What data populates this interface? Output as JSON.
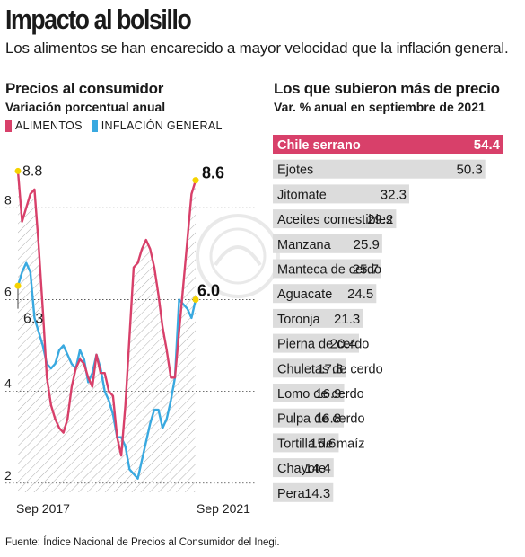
{
  "header": {
    "title": "Impacto al bolsillo",
    "subtitle": "Los alimentos se han encarecido a mayor velocidad que la inflación general."
  },
  "left_panel": {
    "heading": "Precios al consumidor",
    "subheading": "Variación porcentual anual"
  },
  "right_panel": {
    "heading": "Los que subieron más de precio",
    "subheading": "Var. % anual en septiembre de 2021"
  },
  "source": "Fuente: Índice Nacional de Precios al Consumidor del Inegi.",
  "colors": {
    "alimentos": "#d8406a",
    "inflacion": "#39a9e0",
    "highlight_bar": "#d8406a",
    "bar": "#dcdcdc",
    "marker": "#f5d300",
    "hatch": "#b0b0b0"
  },
  "chart_data": [
    {
      "type": "line",
      "title": "Precios al consumidor",
      "subtitle": "Variación porcentual anual",
      "x_labels": [
        "Sep 2017",
        "Sep 2021"
      ],
      "yticks": [
        2,
        4,
        6,
        8
      ],
      "ylim": [
        1.8,
        9.2
      ],
      "grid": "dotted horizontal",
      "legend": "top-left",
      "series": [
        {
          "name": "ALIMENTOS",
          "color": "#d8406a",
          "values": [
            8.8,
            7.7,
            8.0,
            8.3,
            8.4,
            7.2,
            5.8,
            4.3,
            3.7,
            3.4,
            3.2,
            3.1,
            3.4,
            4.1,
            4.5,
            4.7,
            4.6,
            4.3,
            4.1,
            4.8,
            4.4,
            4.4,
            4.0,
            3.9,
            3.0,
            2.6,
            3.7,
            5.2,
            6.7,
            6.8,
            7.1,
            7.3,
            7.1,
            6.7,
            6.1,
            5.4,
            4.9,
            4.3,
            4.3,
            5.3,
            6.3,
            7.3,
            8.3,
            8.6
          ],
          "start_label": "8.8",
          "end_label": "8.6"
        },
        {
          "name": "INFLACIÓN GENERAL",
          "color": "#39a9e0",
          "values": [
            6.3,
            6.6,
            6.8,
            6.6,
            5.6,
            5.3,
            5.0,
            4.6,
            4.5,
            4.6,
            4.9,
            5.0,
            4.8,
            4.6,
            4.5,
            4.9,
            4.7,
            4.2,
            4.4,
            4.8,
            4.5,
            4.0,
            3.8,
            3.5,
            3.0,
            3.0,
            2.8,
            2.3,
            2.2,
            2.1,
            2.5,
            2.9,
            3.3,
            3.6,
            3.6,
            3.2,
            3.4,
            3.8,
            4.3,
            6.0,
            5.9,
            5.8,
            5.6,
            6.0
          ],
          "start_label": "6.3",
          "end_label": "6.0"
        }
      ]
    },
    {
      "type": "bar",
      "title": "Los que subieron más de precio",
      "subtitle": "Var. % anual en septiembre de 2021",
      "orientation": "horizontal",
      "categories": [
        "Chile serrano",
        "Ejotes",
        "Jitomate",
        "Aceites comestibles",
        "Manzana",
        "Manteca de cerdo",
        "Aguacate",
        "Toronja",
        "Pierna de cerdo",
        "Chuletas de cerdo",
        "Lomo de cerdo",
        "Pulpa de cerdo",
        "Tortilla de maíz",
        "Chayote",
        "Pera"
      ],
      "values": [
        54.4,
        50.3,
        32.3,
        29.2,
        25.9,
        25.7,
        24.5,
        21.3,
        20.4,
        17.3,
        16.9,
        16.8,
        15.6,
        14.4,
        14.3
      ],
      "value_labels": [
        "54.4",
        "50.3",
        "32.3",
        "29.2",
        "25.9",
        "25.7",
        "24.5",
        "21.3",
        "20.4",
        "17.3",
        "16.9",
        "16.8",
        "15.6",
        "14.4",
        "14.3"
      ],
      "highlight": "Chile serrano"
    }
  ]
}
